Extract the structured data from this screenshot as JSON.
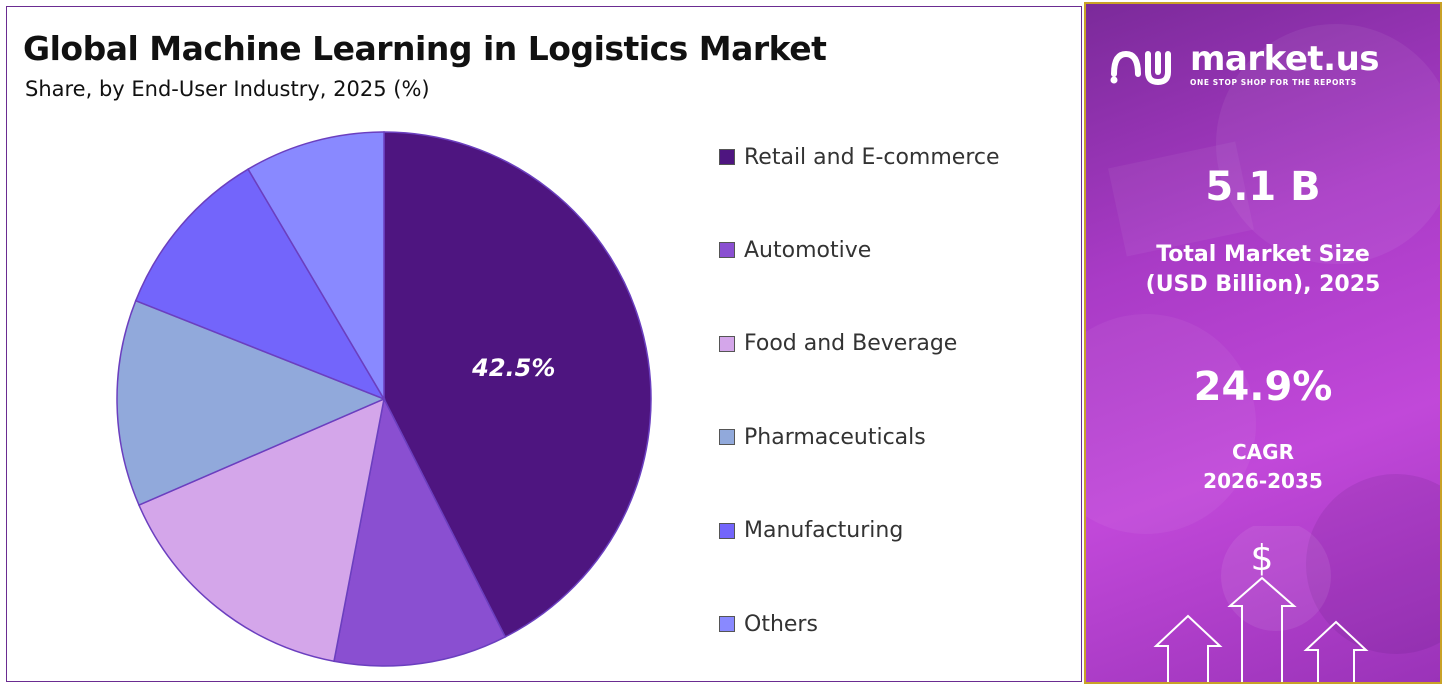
{
  "chart_data": {
    "type": "pie",
    "title": "Global Machine Learning in Logistics Market",
    "subtitle": "Share, by End-User Industry, 2025 (%)",
    "categories": [
      "Retail and E-commerce",
      "Automotive",
      "Food and Beverage",
      "Pharmaceuticals",
      "Manufacturing",
      "Others"
    ],
    "values": [
      42.5,
      10.5,
      15.5,
      12.5,
      10.5,
      8.5
    ],
    "colors": [
      "#4e1580",
      "#8a4fd1",
      "#d4a6ea",
      "#91a9db",
      "#7365fb",
      "#8989ff"
    ],
    "data_labels": [
      "42.5%",
      "",
      "",
      "",
      "",
      ""
    ],
    "legend_position": "right"
  },
  "side_panel": {
    "brand_name": "market.us",
    "brand_tagline": "ONE STOP SHOP FOR THE REPORTS",
    "market_size_value": "5.1 B",
    "market_size_label_1": "Total Market Size",
    "market_size_label_2": "(USD Billion), 2025",
    "cagr_value": "24.9%",
    "cagr_label_1": "CAGR",
    "cagr_label_2": "2026-2035",
    "dollar_symbol": "$",
    "icon": "growth-arrows-icon"
  }
}
